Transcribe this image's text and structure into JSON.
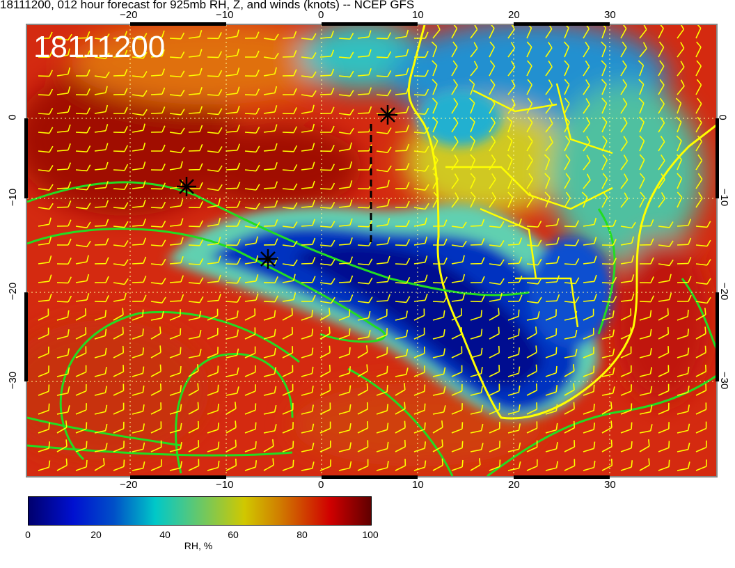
{
  "header": {
    "title": "18111200, 012 hour forecast for 925mb RH, Z, and winds (knots) -- NCEP GFS",
    "date_label": "18111200"
  },
  "map": {
    "lon_ticks_top": [
      "−20",
      "−10",
      "0",
      "10",
      "20",
      "30"
    ],
    "lon_ticks_bottom": [
      "−20",
      "−10",
      "0",
      "10",
      "20",
      "30"
    ],
    "lat_ticks_left": [
      "0",
      "−10",
      "−20",
      "−30"
    ],
    "lat_ticks_right": [
      "0",
      "−10",
      "−20",
      "−30"
    ],
    "colors": {
      "land_outline": "#ffff00",
      "contours": "#22dd22",
      "wind_barbs": "#ffff00",
      "markers": "#000000"
    },
    "markers": [
      "star",
      "star",
      "star"
    ]
  },
  "colorbar": {
    "ticks": [
      "0",
      "20",
      "40",
      "60",
      "80",
      "100"
    ],
    "label": "RH, %",
    "range": [
      0,
      100
    ]
  }
}
